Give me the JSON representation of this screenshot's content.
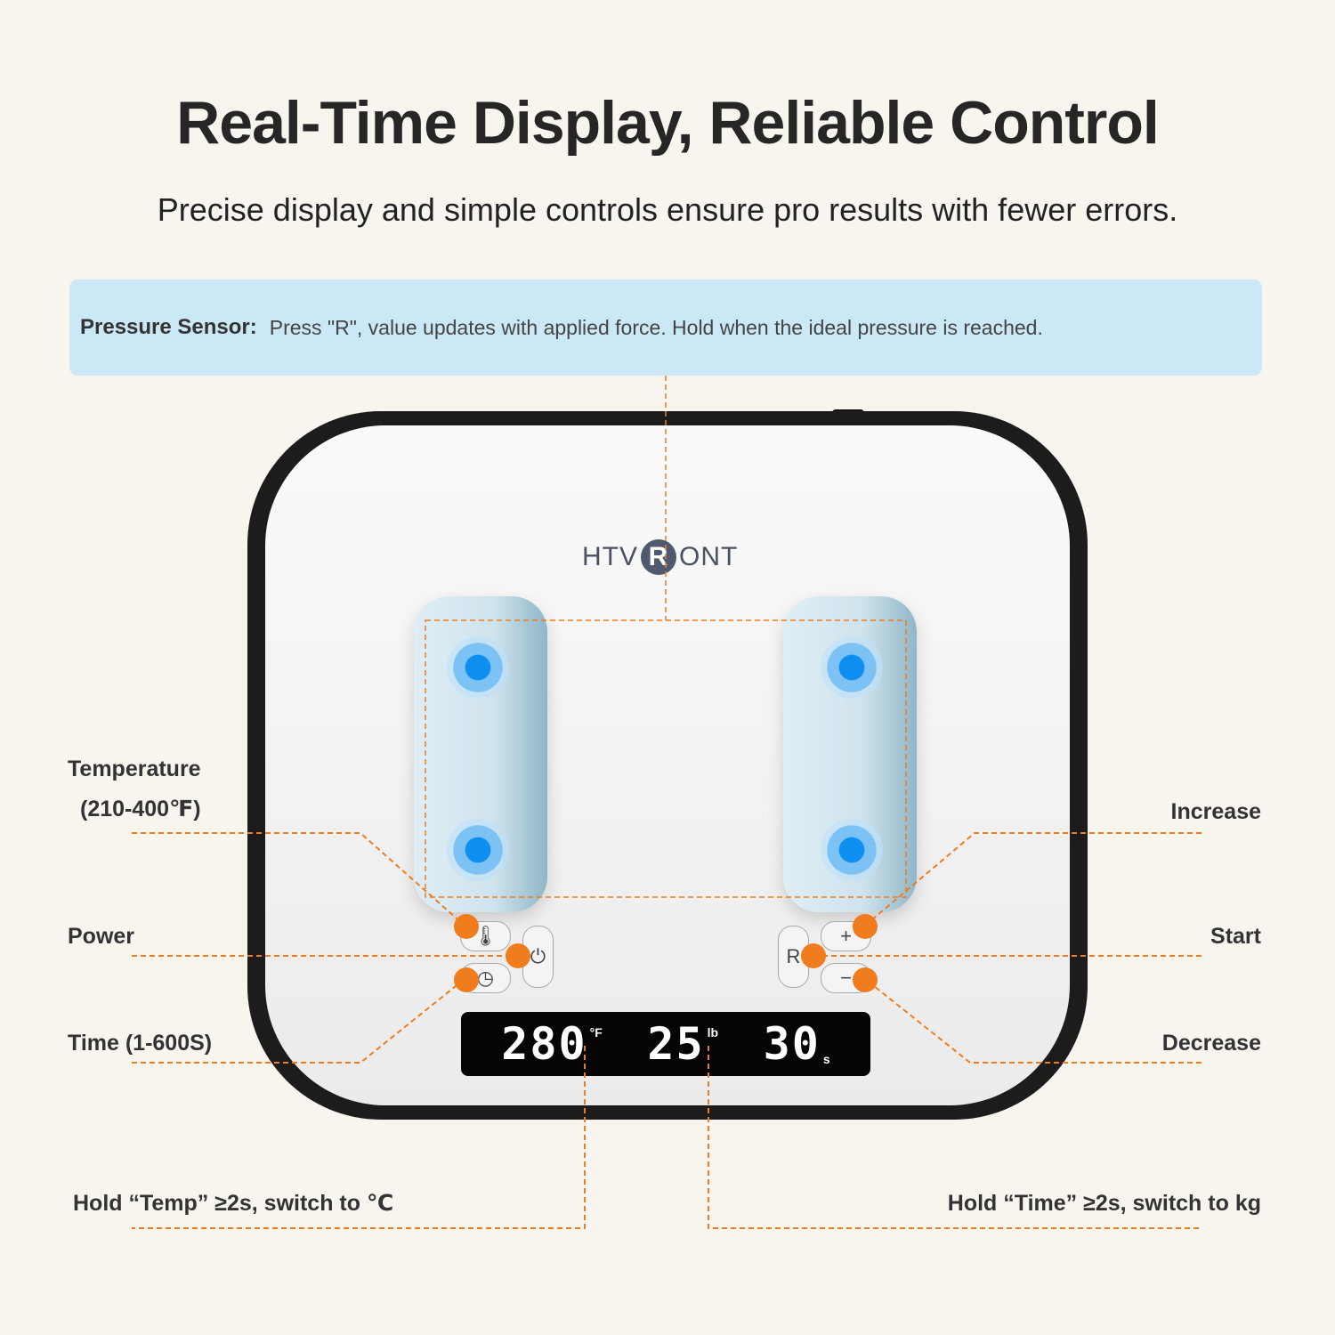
{
  "header": {
    "title": "Real-Time Display, Reliable Control",
    "subtitle": "Precise display and simple controls ensure pro results with fewer errors."
  },
  "banner": {
    "label": "Pressure Sensor:",
    "text": "Press \"R\", value updates with applied force. Hold when the ideal pressure is reached."
  },
  "device": {
    "logo_left": "HTV",
    "logo_mark": "R",
    "logo_right": "ONT",
    "display": {
      "temperature": "280",
      "temperature_unit": "°F",
      "pressure": "25",
      "pressure_unit": "lb",
      "time": "30",
      "time_unit": "s"
    },
    "buttons": {
      "increase": "+",
      "decrease": "−",
      "start": "R"
    }
  },
  "labels": {
    "temperature": "Temperature",
    "temperature_range": "(210-400℉)",
    "power": "Power",
    "time": "Time (1-600S)",
    "increase": "Increase",
    "start": "Start",
    "decrease": "Decrease",
    "hold_temp": "Hold “Temp” ≥2s, switch to ℃",
    "hold_time": "Hold “Time” ≥2s, switch to kg"
  },
  "colors": {
    "accent": "#f17c1e",
    "banner": "#cbe8f6",
    "background": "#f8f5ef"
  }
}
